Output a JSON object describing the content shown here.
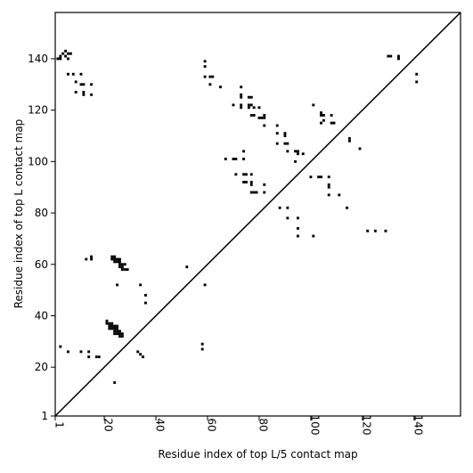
{
  "chart_data": {
    "type": "scatter",
    "xlabel": "Residue index of top L/5 contact map",
    "ylabel": "Residue index of top L contact map",
    "xlim": [
      1,
      158
    ],
    "ylim": [
      1,
      158
    ],
    "x_ticks": [
      1,
      20,
      40,
      60,
      80,
      100,
      120,
      140
    ],
    "y_ticks": [
      1,
      20,
      40,
      60,
      80,
      100,
      120,
      140
    ],
    "diagonal_line": true,
    "marker": "square",
    "colors": {
      "points": "#000000",
      "axes": "#000000",
      "background": "#ffffff"
    },
    "series": [
      {
        "points": [
          [
            2,
            140
          ],
          [
            3,
            140
          ],
          [
            3,
            141
          ],
          [
            4,
            142
          ],
          [
            5,
            141
          ],
          [
            5,
            143
          ],
          [
            6,
            140
          ],
          [
            6,
            142
          ],
          [
            7,
            142
          ],
          [
            6,
            134
          ],
          [
            8,
            134
          ],
          [
            9,
            131
          ],
          [
            9,
            127
          ],
          [
            11,
            134
          ],
          [
            11,
            130
          ],
          [
            12,
            130
          ],
          [
            12,
            127
          ],
          [
            12,
            126
          ],
          [
            15,
            130
          ],
          [
            15,
            126
          ],
          [
            59,
            139
          ],
          [
            59,
            137
          ],
          [
            59,
            133
          ],
          [
            61,
            133
          ],
          [
            62,
            133
          ],
          [
            61,
            130
          ],
          [
            65,
            129
          ],
          [
            70,
            122
          ],
          [
            73,
            129
          ],
          [
            73,
            126
          ],
          [
            73,
            125
          ],
          [
            73,
            122
          ],
          [
            73,
            121
          ],
          [
            76,
            125
          ],
          [
            77,
            125
          ],
          [
            76,
            122
          ],
          [
            77,
            122
          ],
          [
            76,
            121
          ],
          [
            78,
            121
          ],
          [
            80,
            121
          ],
          [
            77,
            118
          ],
          [
            78,
            118
          ],
          [
            80,
            117
          ],
          [
            81,
            117
          ],
          [
            82,
            118
          ],
          [
            82,
            117
          ],
          [
            82,
            114
          ],
          [
            87,
            114
          ],
          [
            87,
            111
          ],
          [
            90,
            111
          ],
          [
            90,
            110
          ],
          [
            87,
            107
          ],
          [
            90,
            107
          ],
          [
            91,
            107
          ],
          [
            91,
            104
          ],
          [
            94,
            104
          ],
          [
            95,
            104
          ],
          [
            95,
            103
          ],
          [
            97,
            103
          ],
          [
            94,
            100
          ],
          [
            67,
            101
          ],
          [
            70,
            101
          ],
          [
            71,
            101
          ],
          [
            74,
            104
          ],
          [
            74,
            101
          ],
          [
            71,
            95
          ],
          [
            74,
            95
          ],
          [
            75,
            95
          ],
          [
            77,
            95
          ],
          [
            74,
            92
          ],
          [
            75,
            92
          ],
          [
            77,
            92
          ],
          [
            77,
            91
          ],
          [
            82,
            91
          ],
          [
            77,
            88
          ],
          [
            78,
            88
          ],
          [
            79,
            88
          ],
          [
            82,
            88
          ],
          [
            88,
            82
          ],
          [
            91,
            82
          ],
          [
            91,
            78
          ],
          [
            95,
            78
          ],
          [
            95,
            74
          ],
          [
            95,
            71
          ],
          [
            101,
            71
          ],
          [
            101,
            122
          ],
          [
            104,
            119
          ],
          [
            104,
            118
          ],
          [
            105,
            118
          ],
          [
            105,
            116
          ],
          [
            104,
            115
          ],
          [
            108,
            118
          ],
          [
            108,
            115
          ],
          [
            109,
            115
          ],
          [
            115,
            109
          ],
          [
            115,
            108
          ],
          [
            119,
            105
          ],
          [
            100,
            94
          ],
          [
            103,
            94
          ],
          [
            104,
            94
          ],
          [
            107,
            94
          ],
          [
            107,
            91
          ],
          [
            107,
            90
          ],
          [
            107,
            87
          ],
          [
            111,
            87
          ],
          [
            114,
            82
          ],
          [
            122,
            73
          ],
          [
            125,
            73
          ],
          [
            129,
            73
          ],
          [
            130,
            141
          ],
          [
            131,
            141
          ],
          [
            134,
            141
          ],
          [
            134,
            140
          ],
          [
            141,
            134
          ],
          [
            141,
            131
          ],
          [
            23,
            63
          ],
          [
            24,
            63
          ],
          [
            23,
            62
          ],
          [
            24,
            62
          ],
          [
            25,
            62
          ],
          [
            26,
            62
          ],
          [
            24,
            61
          ],
          [
            25,
            61
          ],
          [
            26,
            61
          ],
          [
            26,
            60
          ],
          [
            27,
            60
          ],
          [
            28,
            60
          ],
          [
            26,
            59
          ],
          [
            27,
            59
          ],
          [
            27,
            58
          ],
          [
            28,
            58
          ],
          [
            29,
            58
          ],
          [
            13,
            62
          ],
          [
            15,
            63
          ],
          [
            15,
            62
          ],
          [
            25,
            52
          ],
          [
            34,
            52
          ],
          [
            36,
            48
          ],
          [
            36,
            45
          ],
          [
            52,
            59
          ],
          [
            59,
            52
          ],
          [
            21,
            38
          ],
          [
            21,
            37
          ],
          [
            22,
            37
          ],
          [
            23,
            37
          ],
          [
            22,
            36
          ],
          [
            23,
            36
          ],
          [
            24,
            36
          ],
          [
            25,
            36
          ],
          [
            22,
            35
          ],
          [
            23,
            35
          ],
          [
            24,
            35
          ],
          [
            25,
            35
          ],
          [
            24,
            34
          ],
          [
            25,
            34
          ],
          [
            26,
            34
          ],
          [
            24,
            33
          ],
          [
            25,
            33
          ],
          [
            26,
            33
          ],
          [
            27,
            33
          ],
          [
            26,
            32
          ],
          [
            27,
            32
          ],
          [
            3,
            28
          ],
          [
            6,
            26
          ],
          [
            11,
            26
          ],
          [
            14,
            26
          ],
          [
            14,
            24
          ],
          [
            17,
            24
          ],
          [
            18,
            24
          ],
          [
            33,
            26
          ],
          [
            34,
            25
          ],
          [
            35,
            24
          ],
          [
            58,
            29
          ],
          [
            58,
            27
          ],
          [
            24,
            14
          ]
        ]
      }
    ]
  }
}
